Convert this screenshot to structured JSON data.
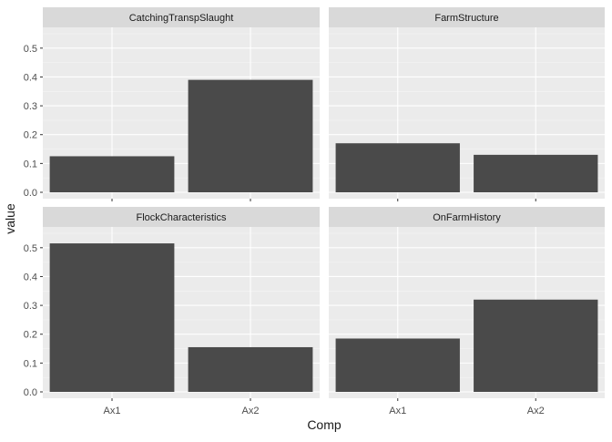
{
  "chart_data": {
    "type": "bar",
    "facet": "wrap",
    "xlabel": "Comp",
    "ylabel": "value",
    "categories": [
      "Ax1",
      "Ax2"
    ],
    "ylim": [
      0,
      0.55
    ],
    "yticks": [
      "0.0",
      "0.1",
      "0.2",
      "0.3",
      "0.4",
      "0.5"
    ],
    "panels": [
      {
        "strip": "CatchingTranspSlaught",
        "values": [
          0.125,
          0.39
        ]
      },
      {
        "strip": "FarmStructure",
        "values": [
          0.17,
          0.13
        ]
      },
      {
        "strip": "FlockCharacteristics",
        "values": [
          0.515,
          0.155
        ]
      },
      {
        "strip": "OnFarmHistory",
        "values": [
          0.185,
          0.32
        ]
      }
    ],
    "grid": true
  },
  "colors": {
    "panel_bg": "#ebebeb",
    "strip_bg": "#d9d9d9",
    "bar_fill": "#4a4a4a",
    "grid_major": "#ffffff",
    "text": "#4d4d4d",
    "title_text": "#1a1a1a"
  }
}
